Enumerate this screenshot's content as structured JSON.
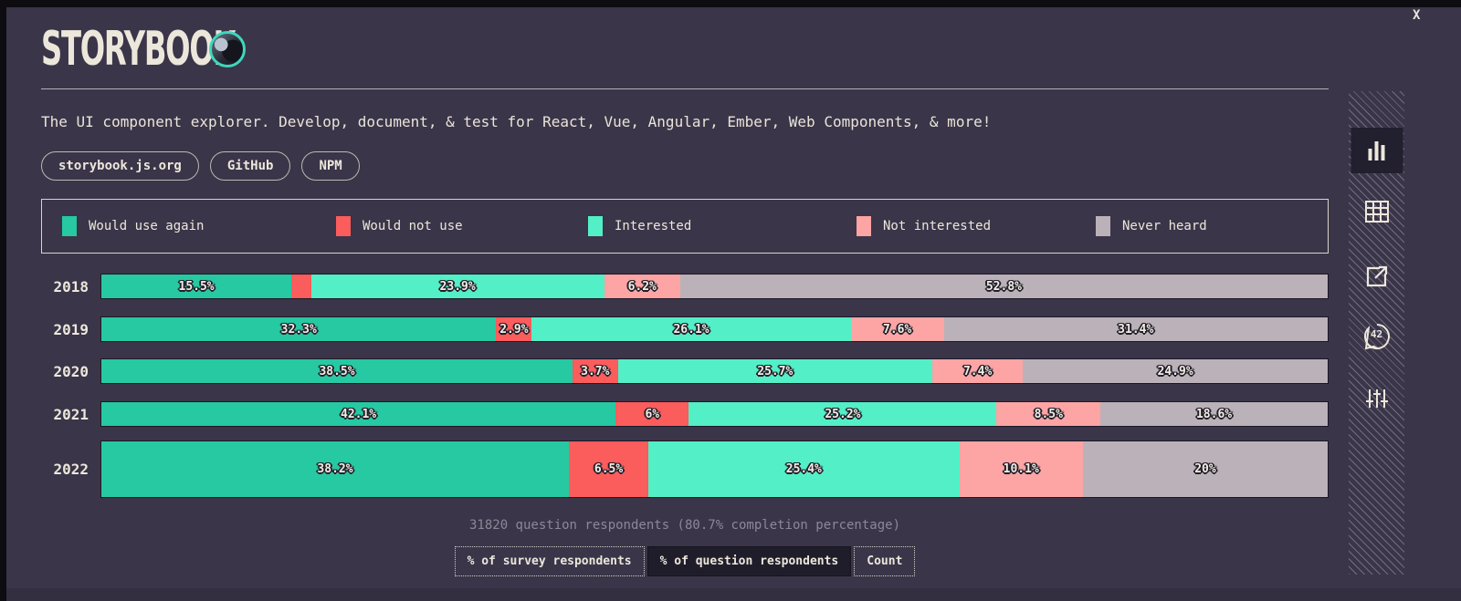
{
  "window": {
    "close": "X"
  },
  "header": {
    "title": "STORYBOOK",
    "subtitle": "The UI component explorer. Develop, document, & test for React, Vue, Angular, Ember, Web Components, & more!",
    "links": [
      {
        "id": "storybook-js-org",
        "label": "storybook.js.org"
      },
      {
        "id": "github",
        "label": "GitHub"
      },
      {
        "id": "npm",
        "label": "NPM"
      }
    ]
  },
  "legend": {
    "items": [
      {
        "id": "would-use-again",
        "label": "Would use again",
        "color": "#26c9a2"
      },
      {
        "id": "would-not-use",
        "label": "Would not use",
        "color": "#fb5c5c"
      },
      {
        "id": "interested",
        "label": "Interested",
        "color": "#53efc7"
      },
      {
        "id": "not-interested",
        "label": "Not interested",
        "color": "#fda4a4"
      },
      {
        "id": "never-heard",
        "label": "Never heard",
        "color": "#bab2b8"
      }
    ]
  },
  "chart_data": {
    "type": "bar",
    "variant": "horizontal-stacked",
    "categories": [
      "2018",
      "2019",
      "2020",
      "2021",
      "2022"
    ],
    "series": [
      {
        "name": "Would use again",
        "color": "#26c9a2",
        "values": [
          15.5,
          32.3,
          38.5,
          42.1,
          38.2
        ],
        "labels": [
          "15.5%",
          "32.3%",
          "38.5%",
          "42.1%",
          "38.2%"
        ]
      },
      {
        "name": "Would not use",
        "color": "#fb5c5c",
        "values": [
          1.6,
          2.9,
          3.7,
          6,
          6.5
        ],
        "labels": [
          "",
          "2.9%",
          "3.7%",
          "6%",
          "6.5%"
        ]
      },
      {
        "name": "Interested",
        "color": "#53efc7",
        "values": [
          23.9,
          26.1,
          25.7,
          25.2,
          25.4
        ],
        "labels": [
          "23.9%",
          "26.1%",
          "25.7%",
          "25.2%",
          "25.4%"
        ]
      },
      {
        "name": "Not interested",
        "color": "#fda4a4",
        "values": [
          6.2,
          7.6,
          7.4,
          8.5,
          10.1
        ],
        "labels": [
          "6.2%",
          "7.6%",
          "7.4%",
          "8.5%",
          "10.1%"
        ]
      },
      {
        "name": "Never heard",
        "color": "#bab2b8",
        "values": [
          52.8,
          31.4,
          24.9,
          18.6,
          20
        ],
        "labels": [
          "52.8%",
          "31.4%",
          "24.9%",
          "18.6%",
          "20%"
        ]
      }
    ],
    "xlim": [
      0,
      100
    ],
    "units": "percent",
    "legend_position": "top",
    "grid": false
  },
  "footer": {
    "note": "31820 question respondents (80.7% completion percentage)",
    "toggles": [
      {
        "id": "percent-survey",
        "label": "% of survey respondents",
        "active": false
      },
      {
        "id": "percent-question",
        "label": "% of question respondents",
        "active": true
      },
      {
        "id": "count",
        "label": "Count",
        "active": false
      }
    ]
  },
  "sidebar": {
    "icons": [
      "bar-chart",
      "data-table",
      "share-external-link",
      "comments",
      "filter-sliders"
    ],
    "comments_count": "42"
  }
}
